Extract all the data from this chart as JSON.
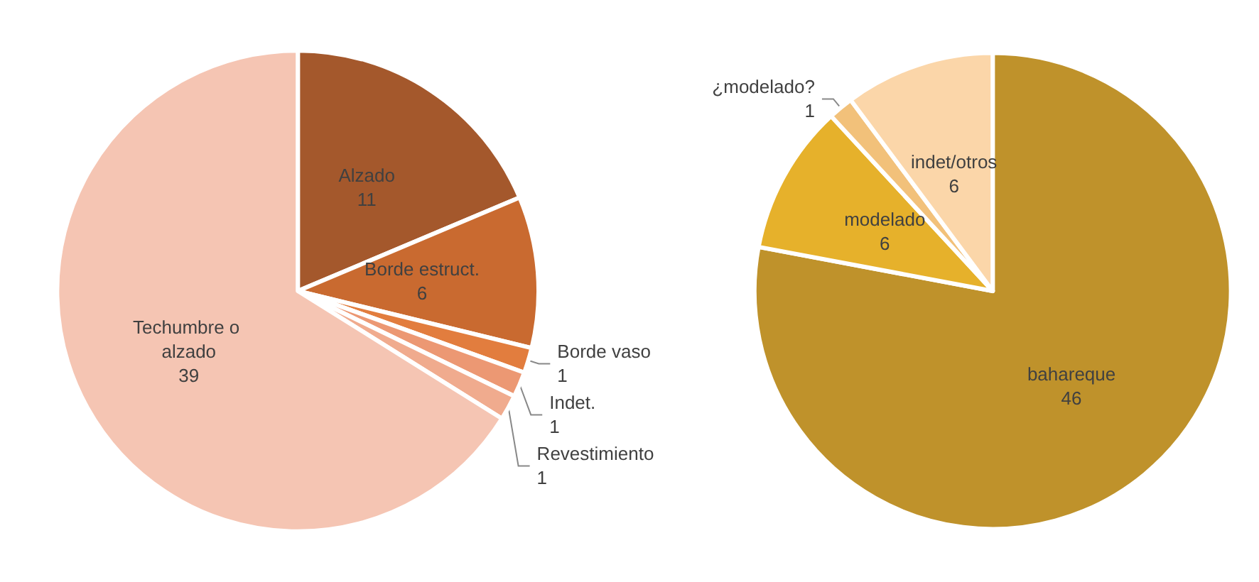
{
  "chart_data": [
    {
      "type": "pie",
      "categories": [
        "Alzado",
        "Borde estruct.",
        "Borde vaso",
        "Indet.",
        "Revestimiento",
        "Techumbre o alzado"
      ],
      "values": [
        11,
        6,
        1,
        1,
        1,
        39
      ],
      "colors": [
        "#a4582c",
        "#c96a30",
        "#e27d3e",
        "#ec9873",
        "#f0ab8e",
        "#f5c5b3"
      ],
      "data_labels": true
    },
    {
      "type": "pie",
      "categories": [
        "bahareque",
        "modelado",
        "¿modelado?",
        "indet/otros"
      ],
      "values": [
        46,
        6,
        1,
        6
      ],
      "colors": [
        "#bf922b",
        "#e6b12b",
        "#f2c17a",
        "#fbd6a9"
      ],
      "data_labels": true
    }
  ]
}
